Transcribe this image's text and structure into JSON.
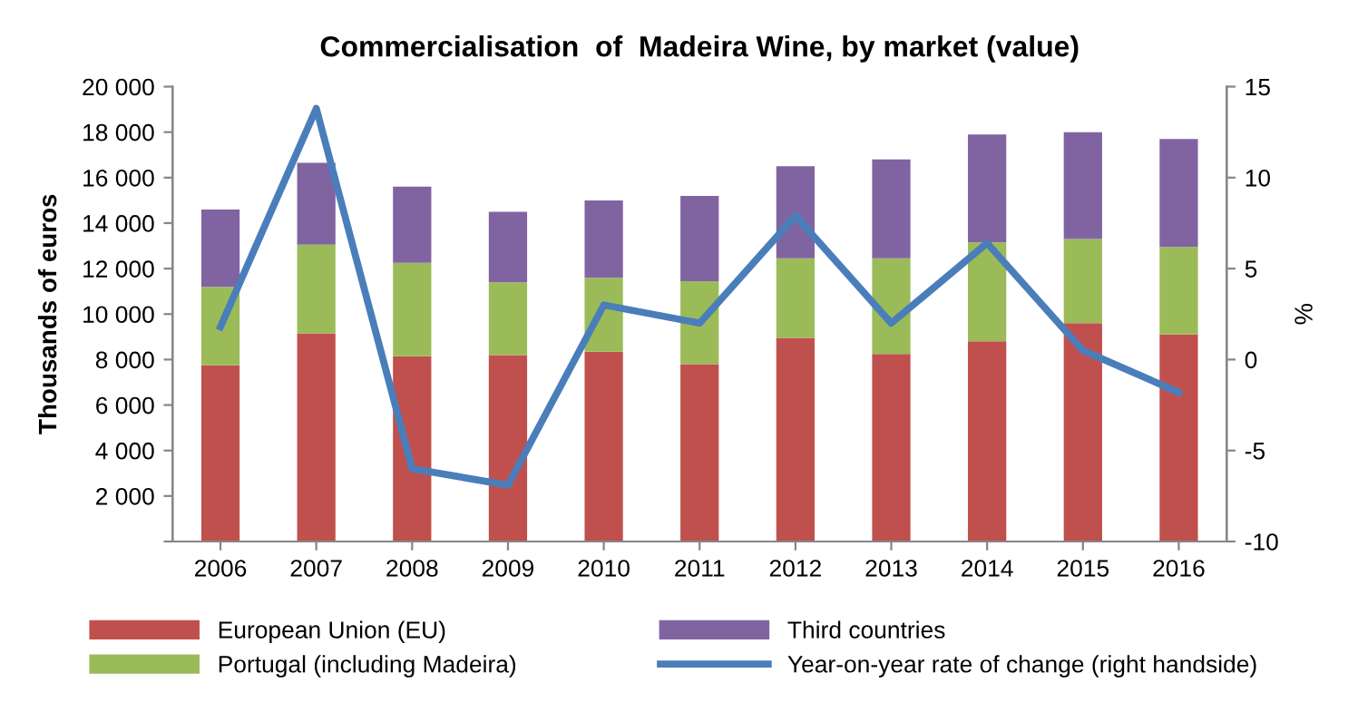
{
  "chart_data": {
    "type": "bar",
    "stacked": true,
    "title": "Commercialisation  of  Madeira Wine, by market (value)",
    "ylabel": "Thousands of euros",
    "y2label": "%",
    "categories": [
      "2006",
      "2007",
      "2008",
      "2009",
      "2010",
      "2011",
      "2012",
      "2013",
      "2014",
      "2015",
      "2016"
    ],
    "series": [
      {
        "name": "European Union (EU)",
        "color": "#c0504d",
        "values": [
          7750,
          9150,
          8150,
          8200,
          8350,
          7800,
          8950,
          8250,
          8800,
          9600,
          9100
        ]
      },
      {
        "name": "Portugal (including Madeira)",
        "color": "#9bbb59",
        "values": [
          3450,
          3900,
          4100,
          3200,
          3250,
          3650,
          3500,
          4200,
          4350,
          3700,
          3850
        ]
      },
      {
        "name": "Third countries",
        "color": "#8064a2",
        "values": [
          3400,
          3600,
          3350,
          3100,
          3400,
          3750,
          4050,
          4350,
          4750,
          4700,
          4750
        ]
      },
      {
        "name": "Year-on-year rate of change (right handside)",
        "color": "#4a7ebb",
        "type": "line",
        "axis": "y2",
        "values": [
          1.8,
          13.8,
          -6.0,
          -6.9,
          3.0,
          2.0,
          7.9,
          2.0,
          6.4,
          0.5,
          -1.8
        ]
      }
    ],
    "ylim": [
      0,
      20000
    ],
    "yticks": [
      {
        "value": 0,
        "label": null
      },
      {
        "value": 2000,
        "label": "2 000"
      },
      {
        "value": 4000,
        "label": "4 000"
      },
      {
        "value": 6000,
        "label": "6 000"
      },
      {
        "value": 8000,
        "label": "8 000"
      },
      {
        "value": 10000,
        "label": "10 000"
      },
      {
        "value": 12000,
        "label": "12 000"
      },
      {
        "value": 14000,
        "label": "14 000"
      },
      {
        "value": 16000,
        "label": "16 000"
      },
      {
        "value": 18000,
        "label": "18 000"
      },
      {
        "value": 20000,
        "label": "20 000"
      }
    ],
    "y2lim": [
      -10,
      15
    ],
    "y2ticks": [
      -10,
      -5,
      0,
      5,
      10,
      15
    ],
    "grid": false,
    "legend": "bottom"
  }
}
